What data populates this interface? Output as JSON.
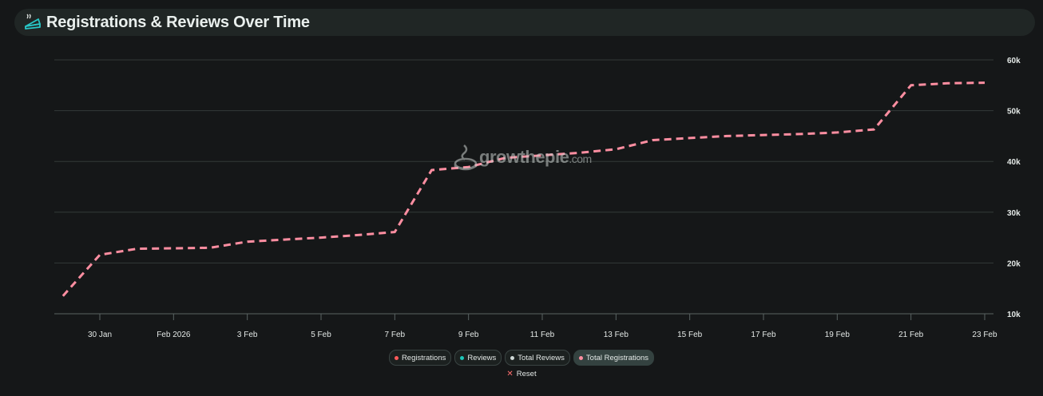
{
  "header": {
    "title": "Registrations & Reviews Over Time",
    "icon": "pie-icon"
  },
  "watermark": {
    "text": "growthepie",
    "suffix": ".com"
  },
  "legend": {
    "items": [
      {
        "label": "Registrations",
        "color": "#ff5a5a",
        "active": false
      },
      {
        "label": "Reviews",
        "color": "#1dc6b8",
        "active": false
      },
      {
        "label": "Total Reviews",
        "color": "#cfd8d6",
        "active": false
      },
      {
        "label": "Total Registrations",
        "color": "#fe8ea1",
        "active": true
      }
    ],
    "reset_label": "Reset"
  },
  "chart_data": {
    "type": "line",
    "x": [
      "2026-01-29",
      "2026-01-30",
      "2026-01-31",
      "2026-02-01",
      "2026-02-02",
      "2026-02-03",
      "2026-02-04",
      "2026-02-05",
      "2026-02-06",
      "2026-02-07",
      "2026-02-08",
      "2026-02-09",
      "2026-02-10",
      "2026-02-11",
      "2026-02-12",
      "2026-02-13",
      "2026-02-14",
      "2026-02-15",
      "2026-02-16",
      "2026-02-17",
      "2026-02-18",
      "2026-02-19",
      "2026-02-20",
      "2026-02-21",
      "2026-02-22",
      "2026-02-23"
    ],
    "x_tick_labels": [
      "30 Jan",
      "Feb 2026",
      "3 Feb",
      "5 Feb",
      "7 Feb",
      "9 Feb",
      "11 Feb",
      "13 Feb",
      "15 Feb",
      "17 Feb",
      "19 Feb",
      "21 Feb",
      "23 Feb"
    ],
    "x_tick_dates": [
      "2026-01-30",
      "2026-02-01",
      "2026-02-03",
      "2026-02-05",
      "2026-02-07",
      "2026-02-09",
      "2026-02-11",
      "2026-02-13",
      "2026-02-15",
      "2026-02-17",
      "2026-02-19",
      "2026-02-21",
      "2026-02-23"
    ],
    "y_tick_labels": [
      "10k",
      "20k",
      "30k",
      "40k",
      "50k",
      "60k"
    ],
    "ylim": [
      10000,
      60000
    ],
    "grid": true,
    "y_axis_position": "right",
    "series": [
      {
        "name": "Total Registrations",
        "color": "#fe8ea1",
        "dashed": true,
        "values": [
          13500,
          21600,
          22800,
          22900,
          23000,
          24200,
          24600,
          25000,
          25500,
          26100,
          38300,
          38900,
          40700,
          41200,
          41700,
          42400,
          44200,
          44600,
          45000,
          45200,
          45400,
          45700,
          46300,
          55000,
          55400,
          55500
        ]
      }
    ]
  }
}
